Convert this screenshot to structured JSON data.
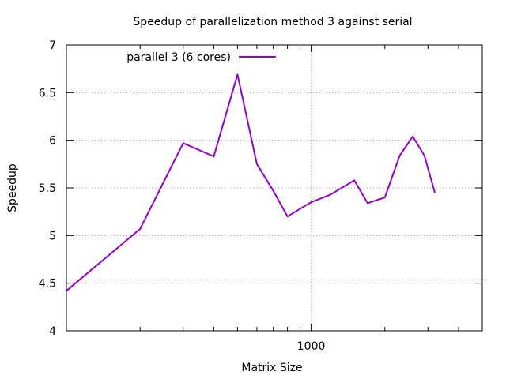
{
  "chart_data": {
    "type": "line",
    "title": "Speedup of parallelization method 3 against serial",
    "xlabel": "Matrix Size",
    "ylabel": "Speedup",
    "x_scale": "log",
    "xlim": [
      100,
      5000
    ],
    "ylim": [
      4,
      7
    ],
    "x_ticks": [
      {
        "value": 1000,
        "label": "1000"
      }
    ],
    "x_minor_ticks": [
      200,
      300,
      400,
      500,
      600,
      700,
      800,
      900,
      2000,
      3000,
      4000
    ],
    "x_grid": [
      1000
    ],
    "y_ticks": [
      {
        "value": 4,
        "label": "4"
      },
      {
        "value": 4.5,
        "label": "4.5"
      },
      {
        "value": 5,
        "label": "5"
      },
      {
        "value": 5.5,
        "label": "5.5"
      },
      {
        "value": 6,
        "label": "6"
      },
      {
        "value": 6.5,
        "label": "6.5"
      },
      {
        "value": 7,
        "label": "7"
      }
    ],
    "grid": true,
    "legend_position": "top-left",
    "series": [
      {
        "name": "parallel 3 (6 cores)",
        "color": "#9400d3",
        "x": [
          100,
          200,
          300,
          400,
          500,
          600,
          700,
          800,
          900,
          1000,
          1200,
          1500,
          1700,
          2000,
          2300,
          2600,
          2900,
          3200
        ],
        "y": [
          4.42,
          5.07,
          5.97,
          5.83,
          6.69,
          5.75,
          5.47,
          5.2,
          5.28,
          5.35,
          5.43,
          5.58,
          5.34,
          5.4,
          5.84,
          6.04,
          5.84,
          5.45
        ]
      }
    ]
  }
}
